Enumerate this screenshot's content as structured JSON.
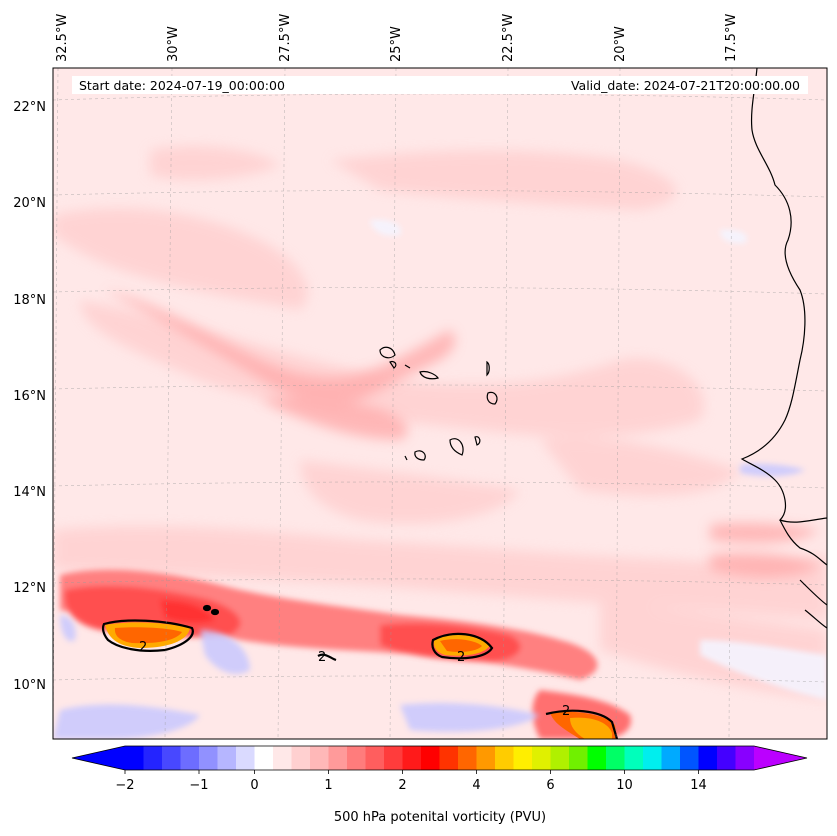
{
  "header": {
    "start_date": "Start date: 2024-07-19_00:00:00",
    "valid_date": "Valid_date: 2024-07-21T20:00:00.00"
  },
  "longitude_labels": [
    "32.5°W",
    "30°W",
    "27.5°W",
    "25°W",
    "22.5°W",
    "20°W",
    "17.5°W"
  ],
  "latitude_labels": [
    "22°N",
    "20°N",
    "18°N",
    "16°N",
    "14°N",
    "12°N",
    "10°N"
  ],
  "contour_labels": [
    "2",
    "2",
    "2",
    "2"
  ],
  "colorbar": {
    "label": "500 hPa potenital vorticity (PVU)",
    "tick_labels": [
      "−2",
      "−1",
      "0",
      "1",
      "2",
      "4",
      "6",
      "10",
      "14"
    ],
    "colors": [
      "#0000ff",
      "#2424ff",
      "#4848ff",
      "#6d6dff",
      "#9191ff",
      "#b6b6ff",
      "#dadaff",
      "#ffffff",
      "#ffe8e8",
      "#ffd0d0",
      "#ffb8b8",
      "#ff9a9a",
      "#ff7c7c",
      "#ff5e5e",
      "#ff3c3c",
      "#ff1a1a",
      "#ff0000",
      "#ff3300",
      "#ff6600",
      "#ff9900",
      "#ffcc00",
      "#ffee00",
      "#e0f000",
      "#b0f000",
      "#70f000",
      "#00ff00",
      "#00ff66",
      "#00ffbb",
      "#00eeee",
      "#00aaff",
      "#0055ff",
      "#0000ff",
      "#4400ff",
      "#8800ff"
    ],
    "extend_min_color": "#0000ff",
    "extend_max_color": "#bb00ff"
  },
  "chart_data": {
    "type": "heatmap",
    "title": "",
    "xlabel": "",
    "ylabel": "",
    "variable": "500 hPa potenital vorticity (PVU)",
    "longitudes_deg": [
      -32.5,
      -30,
      -27.5,
      -25,
      -22.5,
      -20,
      -17.5
    ],
    "latitudes_deg": [
      22,
      20,
      18,
      16,
      14,
      12,
      10
    ],
    "color_levels": [
      -2,
      -1,
      0,
      1,
      2,
      4,
      6,
      10,
      14
    ],
    "contour_level": 2
  }
}
